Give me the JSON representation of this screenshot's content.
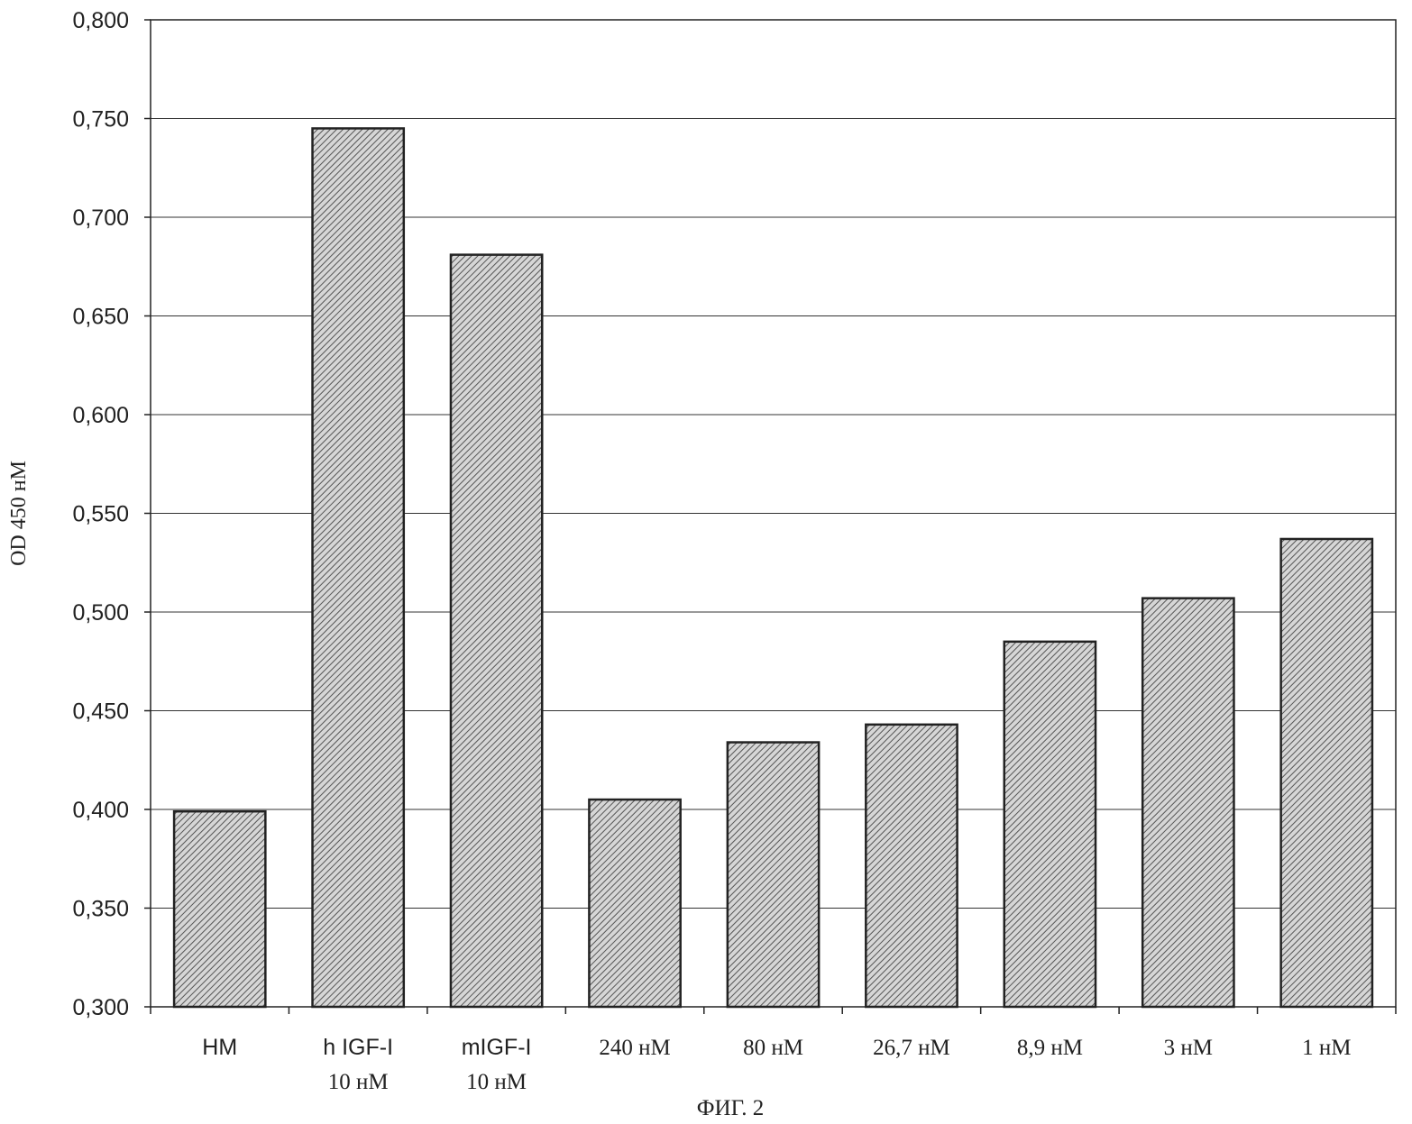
{
  "chart_data": {
    "type": "bar",
    "title": "",
    "xlabel": "",
    "ylabel": "OD 450 нМ",
    "ylim": [
      0.3,
      0.8
    ],
    "grid": true,
    "legend": "none",
    "bar_pattern": "diagonal-hatch",
    "colors": {
      "bar_fill": "#bdbdbd",
      "bar_stroke": "#222222",
      "grid": "#333333",
      "hatch": "#555555"
    },
    "yticks": [
      "0,300",
      "0,350",
      "0,400",
      "0,450",
      "0,500",
      "0,550",
      "0,600",
      "0,650",
      "0,700",
      "0,750",
      "0,800"
    ],
    "categories": [
      {
        "line1": "НМ",
        "line2": "",
        "font": "sans"
      },
      {
        "line1": "h IGF-I",
        "line2": "10 нМ",
        "font": "sans"
      },
      {
        "line1": "mIGF-I",
        "line2": "10 нМ",
        "font": "sans"
      },
      {
        "line1": "240 нМ",
        "line2": "",
        "font": "serif"
      },
      {
        "line1": "80 нМ",
        "line2": "",
        "font": "serif"
      },
      {
        "line1": "26,7 нМ",
        "line2": "",
        "font": "serif"
      },
      {
        "line1": "8,9 нМ",
        "line2": "",
        "font": "serif"
      },
      {
        "line1": "3 нМ",
        "line2": "",
        "font": "serif"
      },
      {
        "line1": "1 нМ",
        "line2": "",
        "font": "serif"
      }
    ],
    "values": [
      0.399,
      0.745,
      0.681,
      0.405,
      0.434,
      0.443,
      0.485,
      0.507,
      0.537
    ]
  },
  "caption": "ФИГ. 2"
}
